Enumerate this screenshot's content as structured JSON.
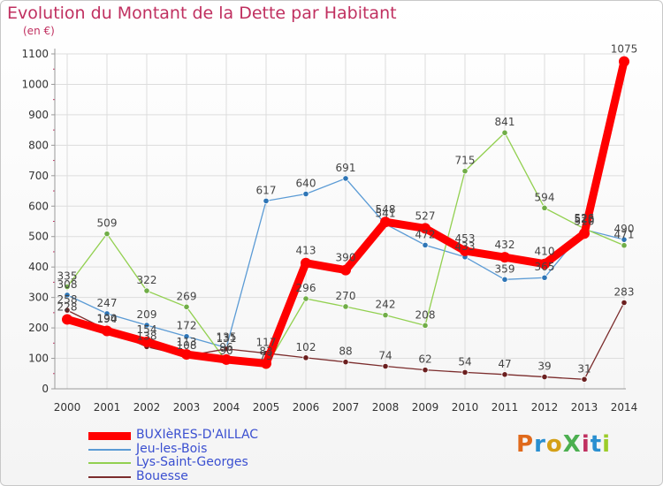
{
  "header": {
    "title": "Evolution du Montant de la Dette par Habitant",
    "unit": "(en €)"
  },
  "logo": {
    "text": "ProXiti",
    "colors": [
      "#e06a1c",
      "#2a8fd0",
      "#d4a017",
      "#4caf50",
      "#c03060",
      "#2a8fd0",
      "#9ccc2a"
    ]
  },
  "chart_data": {
    "type": "line",
    "x": [
      2000,
      2001,
      2002,
      2003,
      2004,
      2005,
      2006,
      2007,
      2008,
      2009,
      2010,
      2011,
      2012,
      2013,
      2014
    ],
    "ylim": [
      0,
      1100
    ],
    "yticks": [
      0,
      100,
      200,
      300,
      400,
      500,
      600,
      700,
      800,
      900,
      1000,
      1100
    ],
    "grid": true,
    "legend_position": "bottom-left",
    "series": [
      {
        "name": "Jeu-les-Bois",
        "color": "#5b9bd5",
        "dot": "#2e75b6",
        "values": [
          308,
          247,
          209,
          172,
          135,
          617,
          640,
          691,
          541,
          472,
          433,
          359,
          365,
          523,
          490
        ]
      },
      {
        "name": "Lys-Saint-Georges",
        "color": "#92d050",
        "dot": "#70ad47",
        "values": [
          335,
          509,
          322,
          269,
          90,
          73,
          296,
          270,
          242,
          208,
          715,
          841,
          594,
          526,
          471
        ]
      },
      {
        "name": "Bouesse",
        "color": "#7b2c2c",
        "dot": "#6b1f1f",
        "values": [
          258,
          194,
          138,
          108,
          131,
          117,
          102,
          88,
          74,
          62,
          54,
          47,
          39,
          31,
          283
        ]
      },
      {
        "name": "BUXIèRES-D'AILLAC",
        "color": "#ff0000",
        "dot": "#ff0000",
        "bold": true,
        "values": [
          228,
          190,
          154,
          113,
          96,
          83,
          413,
          390,
          548,
          527,
          453,
          432,
          410,
          510,
          1075
        ]
      }
    ]
  }
}
